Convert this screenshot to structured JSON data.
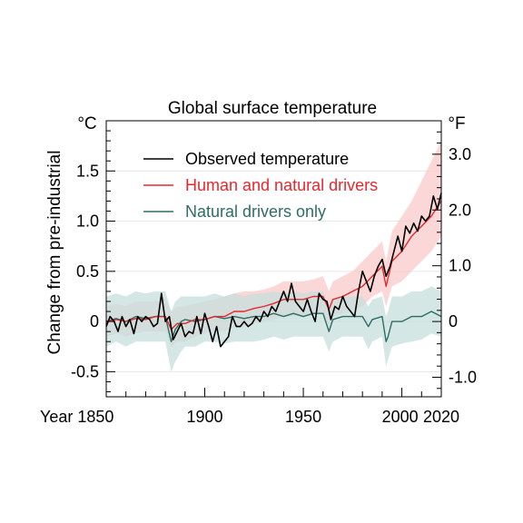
{
  "chart_data": {
    "type": "line",
    "title": "Global surface temperature",
    "ylabel": "Change from pre-industrial",
    "unit_left": "°C",
    "unit_right": "°F",
    "xlim": [
      1850,
      2020
    ],
    "ylim": [
      -0.75,
      2.0
    ],
    "x_tick_labels": [
      "Year 1850",
      "1900",
      "1950",
      "2000",
      "2020"
    ],
    "x_ticks": [
      1850,
      1900,
      1950,
      2000,
      2020
    ],
    "y_ticks": [
      -0.5,
      0,
      0.5,
      1.0,
      1.5
    ],
    "y_tick_labels": [
      "-0.5",
      "0",
      "0.5",
      "1.0",
      "1.5"
    ],
    "y2_ticks": [
      -1.0,
      0,
      1.0,
      2.0,
      3.0
    ],
    "y2_tick_labels": [
      "-1.0",
      "0",
      "1.0",
      "2.0",
      "3.0"
    ],
    "legend_position": "top-left",
    "grid": true,
    "series": [
      {
        "name": "Observed temperature",
        "color": "#000000",
        "x": [
          1850,
          1852,
          1854,
          1856,
          1858,
          1860,
          1862,
          1864,
          1866,
          1868,
          1870,
          1872,
          1874,
          1876,
          1878,
          1880,
          1882,
          1884,
          1886,
          1888,
          1890,
          1892,
          1894,
          1896,
          1898,
          1900,
          1902,
          1904,
          1906,
          1908,
          1910,
          1912,
          1914,
          1916,
          1918,
          1920,
          1922,
          1924,
          1926,
          1928,
          1930,
          1932,
          1934,
          1936,
          1938,
          1940,
          1942,
          1944,
          1946,
          1948,
          1950,
          1952,
          1954,
          1956,
          1958,
          1960,
          1962,
          1964,
          1966,
          1968,
          1970,
          1972,
          1974,
          1976,
          1978,
          1980,
          1982,
          1984,
          1986,
          1988,
          1990,
          1992,
          1994,
          1996,
          1998,
          2000,
          2002,
          2004,
          2006,
          2008,
          2010,
          2012,
          2014,
          2016,
          2018,
          2020
        ],
        "values": [
          -0.05,
          0.05,
          0.0,
          -0.1,
          0.05,
          -0.05,
          0.02,
          -0.12,
          0.05,
          0.0,
          0.05,
          0.02,
          -0.05,
          -0.02,
          0.28,
          0.0,
          0.05,
          -0.18,
          -0.1,
          -0.02,
          -0.15,
          -0.1,
          -0.12,
          0.05,
          -0.12,
          0.08,
          -0.05,
          -0.2,
          -0.05,
          -0.25,
          -0.2,
          -0.15,
          0.05,
          -0.05,
          -0.05,
          0.0,
          -0.05,
          -0.02,
          0.05,
          0.0,
          0.1,
          0.05,
          0.15,
          0.1,
          0.2,
          0.3,
          0.2,
          0.38,
          0.2,
          0.15,
          0.1,
          0.22,
          0.1,
          0.0,
          0.28,
          0.22,
          0.2,
          0.02,
          0.15,
          0.12,
          0.25,
          0.15,
          0.1,
          0.05,
          0.3,
          0.5,
          0.4,
          0.3,
          0.45,
          0.55,
          0.62,
          0.45,
          0.55,
          0.7,
          0.85,
          0.7,
          0.95,
          0.88,
          0.98,
          0.9,
          1.05,
          1.0,
          1.05,
          1.25,
          1.12,
          1.28
        ]
      },
      {
        "name": "Human and natural drivers",
        "color": "#e8272c",
        "band_color": "#f9c9c9",
        "x": [
          1850,
          1855,
          1860,
          1865,
          1870,
          1875,
          1880,
          1883,
          1886,
          1890,
          1895,
          1900,
          1905,
          1910,
          1915,
          1920,
          1925,
          1930,
          1935,
          1940,
          1945,
          1950,
          1955,
          1960,
          1963,
          1965,
          1970,
          1975,
          1980,
          1985,
          1990,
          1992,
          1995,
          2000,
          2005,
          2010,
          2015,
          2020
        ],
        "values": [
          0.0,
          0.02,
          0.0,
          0.03,
          0.02,
          0.05,
          0.05,
          -0.08,
          -0.02,
          -0.02,
          0.02,
          0.02,
          0.05,
          0.05,
          0.1,
          0.1,
          0.13,
          0.15,
          0.18,
          0.22,
          0.22,
          0.22,
          0.25,
          0.25,
          0.12,
          0.22,
          0.25,
          0.3,
          0.35,
          0.45,
          0.55,
          0.35,
          0.6,
          0.7,
          0.85,
          0.95,
          1.05,
          1.2
        ],
        "band_low": [
          -0.15,
          -0.12,
          -0.15,
          -0.12,
          -0.1,
          -0.1,
          -0.1,
          -0.25,
          -0.2,
          -0.2,
          -0.15,
          -0.12,
          -0.08,
          -0.1,
          -0.05,
          -0.05,
          -0.02,
          0.0,
          0.02,
          0.05,
          0.05,
          0.05,
          0.08,
          0.08,
          -0.05,
          0.05,
          0.08,
          0.12,
          0.15,
          0.25,
          0.3,
          0.15,
          0.35,
          0.4,
          0.5,
          0.6,
          0.7,
          0.85
        ],
        "band_high": [
          0.15,
          0.18,
          0.15,
          0.2,
          0.2,
          0.2,
          0.22,
          0.1,
          0.15,
          0.15,
          0.18,
          0.2,
          0.22,
          0.25,
          0.28,
          0.3,
          0.3,
          0.32,
          0.35,
          0.4,
          0.4,
          0.4,
          0.42,
          0.45,
          0.3,
          0.4,
          0.45,
          0.5,
          0.6,
          0.7,
          0.8,
          0.6,
          0.9,
          1.05,
          1.2,
          1.4,
          1.6,
          1.8
        ]
      },
      {
        "name": "Natural drivers only",
        "color": "#2d6e64",
        "band_color": "#c6dfdc",
        "x": [
          1850,
          1855,
          1860,
          1865,
          1870,
          1875,
          1880,
          1883,
          1885,
          1888,
          1890,
          1895,
          1900,
          1905,
          1910,
          1915,
          1920,
          1925,
          1930,
          1935,
          1940,
          1945,
          1950,
          1955,
          1960,
          1963,
          1965,
          1970,
          1975,
          1980,
          1983,
          1985,
          1990,
          1992,
          1993,
          1995,
          2000,
          2005,
          2010,
          2015,
          2020
        ],
        "values": [
          0.0,
          0.03,
          0.0,
          0.05,
          0.03,
          0.05,
          0.05,
          -0.2,
          -0.08,
          0.0,
          0.02,
          0.0,
          0.02,
          0.05,
          0.03,
          0.05,
          0.03,
          0.05,
          0.05,
          0.08,
          0.05,
          0.08,
          0.05,
          0.08,
          0.08,
          -0.1,
          0.02,
          0.05,
          0.05,
          0.05,
          -0.05,
          0.02,
          0.05,
          -0.2,
          -0.15,
          0.0,
          0.0,
          0.05,
          0.05,
          0.1,
          0.05
        ],
        "band_low": [
          -0.25,
          -0.2,
          -0.25,
          -0.2,
          -0.2,
          -0.2,
          -0.2,
          -0.5,
          -0.4,
          -0.3,
          -0.25,
          -0.25,
          -0.2,
          -0.2,
          -0.22,
          -0.2,
          -0.2,
          -0.2,
          -0.18,
          -0.15,
          -0.18,
          -0.15,
          -0.15,
          -0.15,
          -0.15,
          -0.3,
          -0.2,
          -0.15,
          -0.15,
          -0.15,
          -0.28,
          -0.2,
          -0.15,
          -0.45,
          -0.38,
          -0.25,
          -0.22,
          -0.2,
          -0.18,
          -0.12,
          -0.15
        ],
        "band_high": [
          0.25,
          0.28,
          0.25,
          0.3,
          0.28,
          0.3,
          0.3,
          0.1,
          0.2,
          0.25,
          0.25,
          0.25,
          0.25,
          0.28,
          0.25,
          0.28,
          0.25,
          0.28,
          0.28,
          0.3,
          0.28,
          0.3,
          0.28,
          0.3,
          0.3,
          0.12,
          0.22,
          0.25,
          0.25,
          0.25,
          0.15,
          0.22,
          0.25,
          0.05,
          0.1,
          0.25,
          0.25,
          0.3,
          0.3,
          0.35,
          0.3
        ]
      }
    ]
  }
}
